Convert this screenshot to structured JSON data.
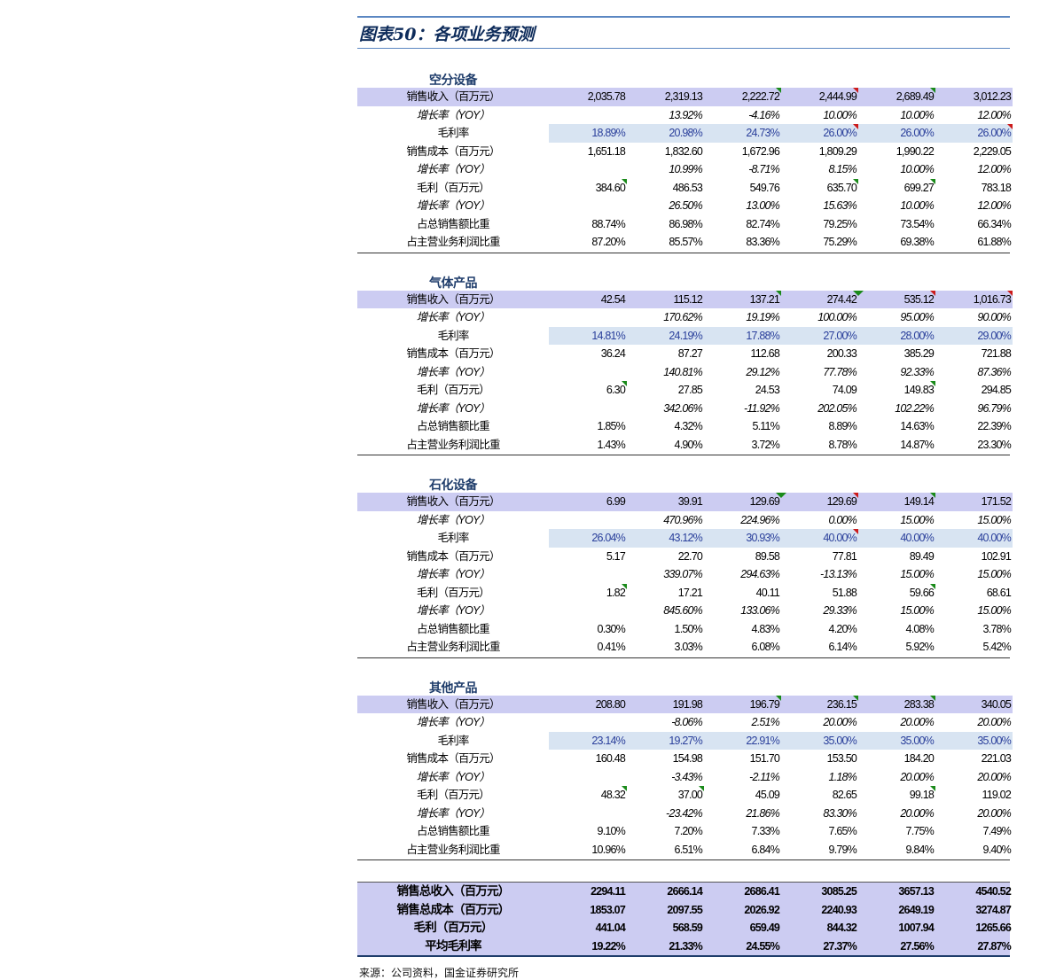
{
  "title": "图表50：各项业务预测",
  "sections": [
    {
      "name": "空分设备",
      "rows": [
        {
          "label": "销售收入（百万元）",
          "type": "rev",
          "values": [
            "2,035.78",
            "2,319.13",
            "2,222.72",
            "2,444.99",
            "2,689.49",
            "3,012.23"
          ]
        },
        {
          "label": "增长率（YOY）",
          "type": "ital",
          "values": [
            "",
            "13.92%",
            "-4.16%",
            "10.00%",
            "10.00%",
            "12.00%"
          ]
        },
        {
          "label": "毛利率",
          "type": "margin",
          "values": [
            "18.89%",
            "20.98%",
            "24.73%",
            "26.00%",
            "26.00%",
            "26.00%"
          ]
        },
        {
          "label": "销售成本（百万元）",
          "type": "plain",
          "values": [
            "1,651.18",
            "1,832.60",
            "1,672.96",
            "1,809.29",
            "1,990.22",
            "2,229.05"
          ]
        },
        {
          "label": "增长率（YOY）",
          "type": "ital",
          "values": [
            "",
            "10.99%",
            "-8.71%",
            "8.15%",
            "10.00%",
            "12.00%"
          ]
        },
        {
          "label": "毛利（百万元）",
          "type": "plain",
          "values": [
            "384.60",
            "486.53",
            "549.76",
            "635.70",
            "699.27",
            "783.18"
          ]
        },
        {
          "label": "增长率（YOY）",
          "type": "ital",
          "values": [
            "",
            "26.50%",
            "13.00%",
            "15.63%",
            "10.00%",
            "12.00%"
          ]
        },
        {
          "label": "占总销售额比重",
          "type": "plain",
          "values": [
            "88.74%",
            "86.98%",
            "82.74%",
            "79.25%",
            "73.54%",
            "66.34%"
          ]
        },
        {
          "label": "占主营业务利润比重",
          "type": "plain",
          "values": [
            "87.20%",
            "85.57%",
            "83.36%",
            "75.29%",
            "69.38%",
            "61.88%"
          ]
        }
      ]
    },
    {
      "name": "气体产品",
      "rows": [
        {
          "label": "销售收入（百万元）",
          "type": "rev",
          "values": [
            "42.54",
            "115.12",
            "137.21",
            "274.42",
            "535.12",
            "1,016.73"
          ]
        },
        {
          "label": "增长率（YOY）",
          "type": "ital",
          "values": [
            "",
            "170.62%",
            "19.19%",
            "100.00%",
            "95.00%",
            "90.00%"
          ]
        },
        {
          "label": "毛利率",
          "type": "margin",
          "values": [
            "14.81%",
            "24.19%",
            "17.88%",
            "27.00%",
            "28.00%",
            "29.00%"
          ]
        },
        {
          "label": "销售成本（百万元）",
          "type": "plain",
          "values": [
            "36.24",
            "87.27",
            "112.68",
            "200.33",
            "385.29",
            "721.88"
          ]
        },
        {
          "label": "增长率（YOY）",
          "type": "ital",
          "values": [
            "",
            "140.81%",
            "29.12%",
            "77.78%",
            "92.33%",
            "87.36%"
          ]
        },
        {
          "label": "毛利（百万元）",
          "type": "plain",
          "values": [
            "6.30",
            "27.85",
            "24.53",
            "74.09",
            "149.83",
            "294.85"
          ]
        },
        {
          "label": "增长率（YOY）",
          "type": "ital",
          "values": [
            "",
            "342.06%",
            "-11.92%",
            "202.05%",
            "102.22%",
            "96.79%"
          ]
        },
        {
          "label": "占总销售额比重",
          "type": "plain",
          "values": [
            "1.85%",
            "4.32%",
            "5.11%",
            "8.89%",
            "14.63%",
            "22.39%"
          ]
        },
        {
          "label": "占主营业务利润比重",
          "type": "plain",
          "values": [
            "1.43%",
            "4.90%",
            "3.72%",
            "8.78%",
            "14.87%",
            "23.30%"
          ]
        }
      ]
    },
    {
      "name": "石化设备",
      "rows": [
        {
          "label": "销售收入（百万元）",
          "type": "rev",
          "values": [
            "6.99",
            "39.91",
            "129.69",
            "129.69",
            "149.14",
            "171.52"
          ]
        },
        {
          "label": "增长率（YOY）",
          "type": "ital",
          "values": [
            "",
            "470.96%",
            "224.96%",
            "0.00%",
            "15.00%",
            "15.00%"
          ]
        },
        {
          "label": "毛利率",
          "type": "margin",
          "values": [
            "26.04%",
            "43.12%",
            "30.93%",
            "40.00%",
            "40.00%",
            "40.00%"
          ]
        },
        {
          "label": "销售成本（百万元）",
          "type": "plain",
          "values": [
            "5.17",
            "22.70",
            "89.58",
            "77.81",
            "89.49",
            "102.91"
          ]
        },
        {
          "label": "增长率（YOY）",
          "type": "ital",
          "values": [
            "",
            "339.07%",
            "294.63%",
            "-13.13%",
            "15.00%",
            "15.00%"
          ]
        },
        {
          "label": "毛利（百万元）",
          "type": "plain",
          "values": [
            "1.82",
            "17.21",
            "40.11",
            "51.88",
            "59.66",
            "68.61"
          ]
        },
        {
          "label": "增长率（YOY）",
          "type": "ital",
          "values": [
            "",
            "845.60%",
            "133.06%",
            "29.33%",
            "15.00%",
            "15.00%"
          ]
        },
        {
          "label": "占总销售额比重",
          "type": "plain",
          "values": [
            "0.30%",
            "1.50%",
            "4.83%",
            "4.20%",
            "4.08%",
            "3.78%"
          ]
        },
        {
          "label": "占主营业务利润比重",
          "type": "plain",
          "values": [
            "0.41%",
            "3.03%",
            "6.08%",
            "6.14%",
            "5.92%",
            "5.42%"
          ]
        }
      ]
    },
    {
      "name": "其他产品",
      "rows": [
        {
          "label": "销售收入（百万元）",
          "type": "rev",
          "values": [
            "208.80",
            "191.98",
            "196.79",
            "236.15",
            "283.38",
            "340.05"
          ]
        },
        {
          "label": "增长率（YOY）",
          "type": "ital",
          "values": [
            "",
            "-8.06%",
            "2.51%",
            "20.00%",
            "20.00%",
            "20.00%"
          ]
        },
        {
          "label": "毛利率",
          "type": "margin",
          "values": [
            "23.14%",
            "19.27%",
            "22.91%",
            "35.00%",
            "35.00%",
            "35.00%"
          ]
        },
        {
          "label": "销售成本（百万元）",
          "type": "plain",
          "values": [
            "160.48",
            "154.98",
            "151.70",
            "153.50",
            "184.20",
            "221.03"
          ]
        },
        {
          "label": "增长率（YOY）",
          "type": "ital",
          "values": [
            "",
            "-3.43%",
            "-2.11%",
            "1.18%",
            "20.00%",
            "20.00%"
          ]
        },
        {
          "label": "毛利（百万元）",
          "type": "plain",
          "values": [
            "48.32",
            "37.00",
            "45.09",
            "82.65",
            "99.18",
            "119.02"
          ]
        },
        {
          "label": "增长率（YOY）",
          "type": "ital",
          "values": [
            "",
            "-23.42%",
            "21.86%",
            "83.30%",
            "20.00%",
            "20.00%"
          ]
        },
        {
          "label": "占总销售额比重",
          "type": "plain",
          "values": [
            "9.10%",
            "7.20%",
            "7.33%",
            "7.65%",
            "7.75%",
            "7.49%"
          ]
        },
        {
          "label": "占主营业务利润比重",
          "type": "plain",
          "values": [
            "10.96%",
            "6.51%",
            "6.84%",
            "9.79%",
            "9.84%",
            "9.40%"
          ]
        }
      ]
    }
  ],
  "totals": [
    {
      "label": "销售总收入（百万元）",
      "values": [
        "2294.11",
        "2666.14",
        "2686.41",
        "3085.25",
        "3657.13",
        "4540.52"
      ]
    },
    {
      "label": "销售总成本（百万元）",
      "values": [
        "1853.07",
        "2097.55",
        "2026.92",
        "2240.93",
        "2649.19",
        "3274.87"
      ]
    },
    {
      "label": "毛利（百万元）",
      "values": [
        "441.04",
        "568.59",
        "659.49",
        "844.32",
        "1007.94",
        "1265.66"
      ]
    },
    {
      "label": "平均毛利率",
      "values": [
        "19.22%",
        "21.33%",
        "24.55%",
        "27.37%",
        "27.56%",
        "27.87%"
      ]
    }
  ],
  "source": "来源：公司资料，国金证券研究所"
}
